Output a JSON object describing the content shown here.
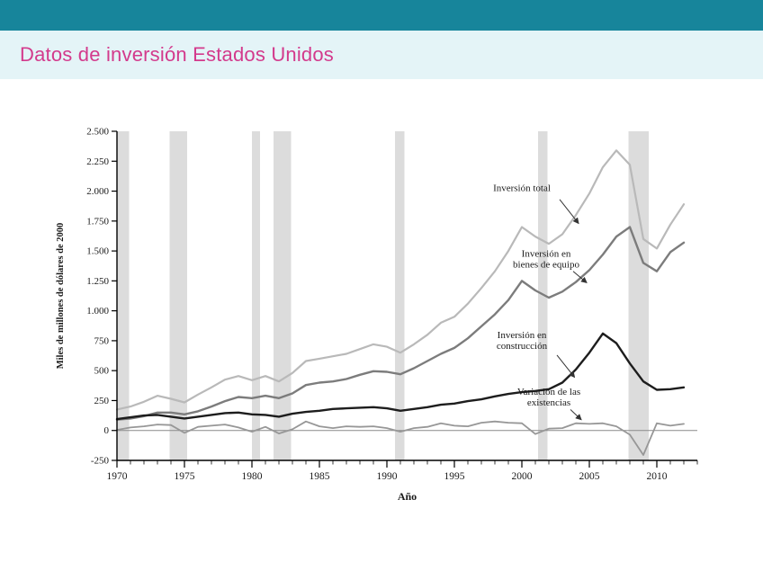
{
  "slide": {
    "title": "Datos de inversión Estados Unidos",
    "title_color": "#d33a8c",
    "topbar_color": "#17859b",
    "banner_color": "#e4f4f7"
  },
  "chart_data": {
    "type": "line",
    "title": "Datos de inversión Estados Unidos",
    "xlabel": "Año",
    "ylabel": "Miles de millones de dólares de 2000",
    "xlim": [
      1970,
      2013
    ],
    "ylim": [
      -250,
      2500
    ],
    "grid": false,
    "zero_line": true,
    "zero_line_color": "#8a8a8a",
    "axis_color": "#000000",
    "band_color": "#dcdcdc",
    "xticks": [
      1970,
      1975,
      1980,
      1985,
      1990,
      1995,
      2000,
      2005,
      2010
    ],
    "minor_xtick_step": 1,
    "ytick_values": [
      2500,
      2250,
      2000,
      1750,
      1500,
      1250,
      1000,
      750,
      500,
      250,
      0,
      -250
    ],
    "ytick_labels": [
      "2.500",
      "2.250",
      "2.000",
      "1.750",
      "1.500",
      "1.250",
      "1.000",
      "750",
      "500",
      "250",
      "0",
      "-250"
    ],
    "recession_bands": [
      [
        1970.0,
        1970.9
      ],
      [
        1973.9,
        1975.2
      ],
      [
        1980.0,
        1980.6
      ],
      [
        1981.6,
        1982.9
      ],
      [
        1990.6,
        1991.3
      ],
      [
        2001.2,
        2001.9
      ],
      [
        2007.9,
        2009.4
      ]
    ],
    "years": [
      1970,
      1971,
      1972,
      1973,
      1974,
      1975,
      1976,
      1977,
      1978,
      1979,
      1980,
      1981,
      1982,
      1983,
      1984,
      1985,
      1986,
      1987,
      1988,
      1989,
      1990,
      1991,
      1992,
      1993,
      1994,
      1995,
      1996,
      1997,
      1998,
      1999,
      2000,
      2001,
      2002,
      2003,
      2004,
      2005,
      2006,
      2007,
      2008,
      2009,
      2010,
      2011,
      2012
    ],
    "series": [
      {
        "name": "Inversión total",
        "color": "#b9b9b9",
        "width": 2.2,
        "values": [
          175,
          200,
          240,
          290,
          265,
          235,
          300,
          360,
          425,
          455,
          420,
          455,
          410,
          480,
          580,
          600,
          620,
          640,
          680,
          720,
          700,
          650,
          720,
          800,
          900,
          950,
          1060,
          1190,
          1330,
          1500,
          1700,
          1620,
          1560,
          1640,
          1800,
          1980,
          2200,
          2340,
          2220,
          1600,
          1520,
          1720,
          1890
        ]
      },
      {
        "name": "Inversión en bienes de equipo",
        "color": "#7c7c7c",
        "width": 2.4,
        "values": [
          90,
          100,
          120,
          150,
          150,
          135,
          160,
          200,
          245,
          280,
          270,
          290,
          270,
          310,
          380,
          400,
          410,
          430,
          465,
          495,
          490,
          470,
          520,
          580,
          640,
          690,
          770,
          870,
          970,
          1090,
          1250,
          1170,
          1110,
          1160,
          1240,
          1340,
          1470,
          1620,
          1700,
          1400,
          1330,
          1490,
          1570
        ]
      },
      {
        "name": "Inversión en construcción",
        "color": "#1d1d1d",
        "width": 2.4,
        "values": [
          95,
          110,
          125,
          130,
          115,
          100,
          115,
          130,
          145,
          150,
          135,
          130,
          115,
          140,
          155,
          165,
          180,
          185,
          190,
          195,
          185,
          165,
          180,
          195,
          215,
          225,
          245,
          260,
          285,
          305,
          320,
          330,
          345,
          400,
          510,
          650,
          810,
          730,
          560,
          410,
          340,
          345,
          360
        ]
      },
      {
        "name": "Variación de las existencias",
        "color": "#979797",
        "width": 1.8,
        "values": [
          5,
          25,
          35,
          50,
          45,
          -20,
          30,
          40,
          50,
          25,
          -10,
          30,
          -25,
          10,
          75,
          35,
          20,
          35,
          30,
          35,
          20,
          -10,
          20,
          30,
          60,
          40,
          35,
          65,
          75,
          65,
          60,
          -30,
          15,
          20,
          60,
          55,
          60,
          35,
          -35,
          -205,
          60,
          40,
          55
        ]
      }
    ],
    "annotations": [
      {
        "lines": [
          "Inversión total"
        ],
        "x": 2000.0,
        "y": 2000,
        "arrow": [
          2002.8,
          1930,
          2004.2,
          1730
        ]
      },
      {
        "lines": [
          "Inversión en",
          "bienes de equipo"
        ],
        "x": 2001.8,
        "y": 1450,
        "arrow": [
          2003.8,
          1330,
          2004.8,
          1235
        ]
      },
      {
        "lines": [
          "Inversión en",
          "construcción"
        ],
        "x": 2000.0,
        "y": 770,
        "arrow": [
          2002.6,
          630,
          2003.9,
          445
        ]
      },
      {
        "lines": [
          "Variación de las",
          "existencias"
        ],
        "x": 2002.0,
        "y": 300,
        "arrow": [
          2003.6,
          175,
          2004.4,
          90
        ]
      }
    ]
  }
}
